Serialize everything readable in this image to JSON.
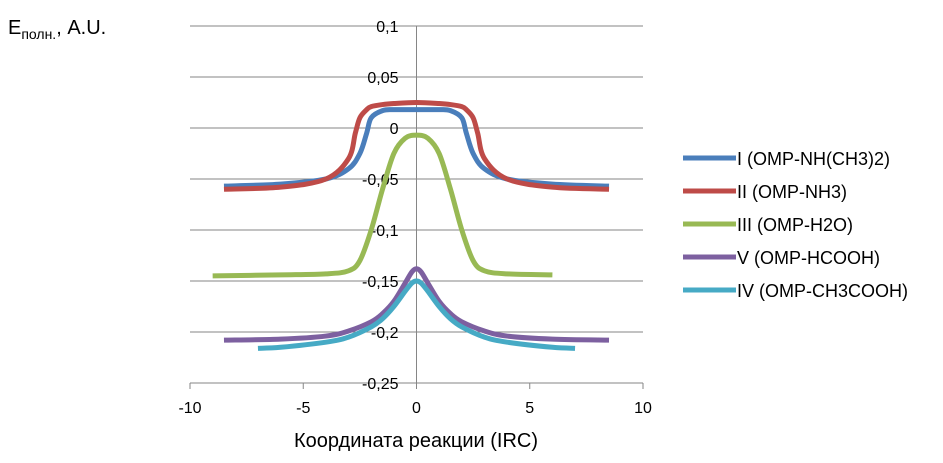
{
  "chart_data": {
    "type": "line",
    "xlabel": "Координата реакции (IRC)",
    "ylabel": "Eполн., A.U.",
    "ylabel_main": "E",
    "ylabel_sub": "полн.",
    "ylabel_tail": ", A.U.",
    "xlim": [
      -10,
      10
    ],
    "ylim": [
      -0.25,
      0.1
    ],
    "xticks": [
      -10,
      -5,
      0,
      5,
      10
    ],
    "xtick_labels": [
      "-10",
      "-5",
      "0",
      "5",
      "10"
    ],
    "yticks": [
      0.1,
      0.05,
      0,
      -0.05,
      -0.1,
      -0.15,
      -0.2,
      -0.25
    ],
    "ytick_labels": [
      "0,1",
      "0,05",
      "0",
      "-0,05",
      "-0,1",
      "-0,15",
      "-0,2",
      "-0,25"
    ],
    "grid": "horizontal",
    "legend_position": "right",
    "series": [
      {
        "name": "I (OMP-NH(CH3)2)",
        "color": "#4a7ebb",
        "x": [
          -8.5,
          -6,
          -4,
          -3,
          -2.5,
          -2.2,
          -2,
          -1.5,
          -1,
          0,
          1,
          1.5,
          2,
          2.2,
          2.5,
          3,
          4,
          6,
          8.5
        ],
        "y": [
          -0.057,
          -0.055,
          -0.05,
          -0.04,
          -0.025,
          -0.005,
          0.01,
          0.017,
          0.018,
          0.018,
          0.018,
          0.017,
          0.01,
          -0.005,
          -0.025,
          -0.04,
          -0.05,
          -0.055,
          -0.057
        ]
      },
      {
        "name": "II (OMP-NH3)",
        "color": "#be4b48",
        "x": [
          -8.5,
          -6,
          -4,
          -3,
          -2.7,
          -2.5,
          -2.2,
          -2,
          -1.5,
          -1,
          0,
          1,
          1.5,
          2,
          2.2,
          2.5,
          2.7,
          3,
          4,
          6,
          8.5
        ],
        "y": [
          -0.06,
          -0.058,
          -0.05,
          -0.03,
          -0.005,
          0.01,
          0.018,
          0.021,
          0.023,
          0.024,
          0.025,
          0.024,
          0.023,
          0.021,
          0.018,
          0.01,
          -0.005,
          -0.03,
          -0.05,
          -0.058,
          -0.06
        ]
      },
      {
        "name": "III (OMP-H2O)",
        "color": "#98b954",
        "x": [
          -9,
          -6,
          -4,
          -3,
          -2.5,
          -2,
          -1.5,
          -1,
          -0.5,
          0,
          0.5,
          1,
          1.5,
          2,
          2.5,
          3,
          4,
          6
        ],
        "y": [
          -0.145,
          -0.144,
          -0.143,
          -0.14,
          -0.13,
          -0.1,
          -0.06,
          -0.025,
          -0.01,
          -0.007,
          -0.01,
          -0.025,
          -0.06,
          -0.1,
          -0.13,
          -0.14,
          -0.143,
          -0.144
        ]
      },
      {
        "name": "V (OMP-HCOOH)",
        "color": "#7d60a0",
        "x": [
          -8.5,
          -6,
          -4,
          -3,
          -2,
          -1.5,
          -1,
          -0.5,
          -0.2,
          0,
          0.2,
          0.5,
          1,
          1.5,
          2,
          3,
          4,
          6,
          8.5
        ],
        "y": [
          -0.208,
          -0.207,
          -0.204,
          -0.199,
          -0.19,
          -0.182,
          -0.17,
          -0.152,
          -0.141,
          -0.138,
          -0.141,
          -0.152,
          -0.17,
          -0.182,
          -0.19,
          -0.199,
          -0.204,
          -0.207,
          -0.208
        ]
      },
      {
        "name": "IV (OMP-CH3COOH)",
        "color": "#46aac5",
        "x": [
          -7,
          -6,
          -4,
          -3,
          -2,
          -1.5,
          -1,
          -0.5,
          -0.2,
          0,
          0.2,
          0.5,
          1,
          1.5,
          2,
          3,
          4,
          6,
          7
        ],
        "y": [
          -0.216,
          -0.215,
          -0.21,
          -0.205,
          -0.195,
          -0.187,
          -0.175,
          -0.16,
          -0.152,
          -0.15,
          -0.152,
          -0.16,
          -0.175,
          -0.187,
          -0.195,
          -0.205,
          -0.21,
          -0.215,
          -0.216
        ]
      }
    ]
  }
}
